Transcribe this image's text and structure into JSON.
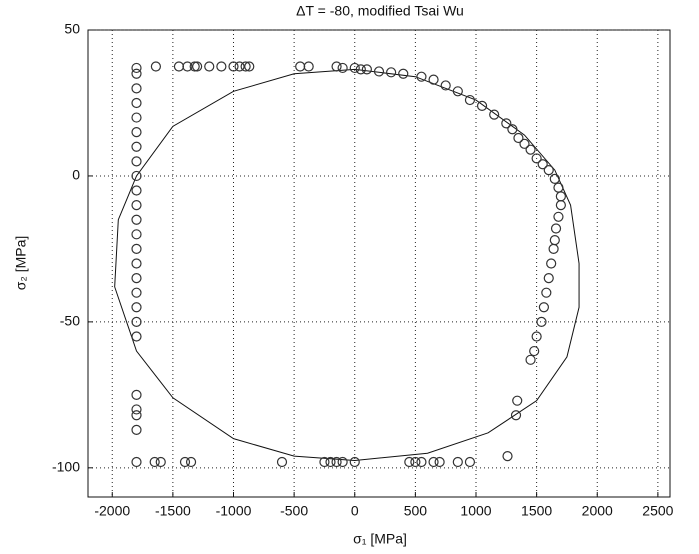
{
  "chart_data": {
    "type": "scatter",
    "title": "ΔT = -80, modified Tsai Wu",
    "x_label": "σ₁ [MPa]",
    "y_label": "σ₂ [MPa]",
    "xlim": [
      -2200,
      2600
    ],
    "ylim": [
      -110,
      50
    ],
    "xticks": [
      -2000,
      -1500,
      -1000,
      -500,
      0,
      500,
      1000,
      1500,
      2000,
      2500
    ],
    "yticks": [
      -100,
      -50,
      0,
      50
    ],
    "grid": true,
    "curve": {
      "color": "#111111",
      "x": [
        0,
        500,
        1000,
        1400,
        1650,
        1780,
        1850,
        1850,
        1750,
        1500,
        1100,
        600,
        0,
        -500,
        -1000,
        -1500,
        -1800,
        -1980,
        -1950,
        -1800,
        -1500,
        -1000,
        -500,
        0
      ],
      "y": [
        36.5,
        34,
        26,
        14,
        2,
        -10,
        -30,
        -45,
        -62,
        -77,
        -88,
        -95,
        -97.5,
        -96,
        -90,
        -76,
        -60,
        -38,
        -15,
        0,
        17,
        29,
        35,
        36.5
      ]
    },
    "points": {
      "color": "#333333",
      "x": [
        -1640,
        -1450,
        -1380,
        -1320,
        -1300,
        -1200,
        -1100,
        -1000,
        -950,
        -900,
        -870,
        -450,
        -380,
        -150,
        -100,
        0,
        50,
        100,
        -1800,
        -1800,
        -1800,
        -1800,
        -1800,
        -1800,
        -1800,
        -1800,
        -1800,
        -1800,
        -1800,
        -1800,
        -1800,
        -1800,
        -1800,
        -1800,
        -1800,
        -1800,
        -1800,
        -1800,
        -1800,
        -1800,
        -1800,
        -1800,
        -1800,
        -1650,
        -1600,
        -1400,
        -1350,
        -600,
        -250,
        -200,
        -150,
        -100,
        0,
        450,
        500,
        550,
        650,
        700,
        850,
        950,
        200,
        300,
        400,
        550,
        650,
        750,
        850,
        950,
        1050,
        1150,
        1250,
        1300,
        1350,
        1400,
        1450,
        1500,
        1550,
        1600,
        1650,
        1680,
        1700,
        1700,
        1680,
        1660,
        1650,
        1640,
        1620,
        1600,
        1580,
        1560,
        1540,
        1500,
        1480,
        1450,
        1340,
        1330,
        1260
      ],
      "y": [
        37.5,
        37.5,
        37.5,
        37.5,
        37.5,
        37.5,
        37.5,
        37.5,
        37.5,
        37.5,
        37.5,
        37.5,
        37.5,
        37.5,
        37,
        37,
        36.5,
        36.5,
        35,
        30,
        25,
        20,
        15,
        10,
        5,
        0,
        -5,
        -10,
        -15,
        -20,
        -25,
        -30,
        -35,
        -40,
        -45,
        -50,
        -55,
        -75,
        -80,
        -82,
        -87,
        37,
        -98,
        -98,
        -98,
        -98,
        -98,
        -98,
        -98,
        -98,
        -98,
        -98,
        -98,
        -98,
        -98,
        -98,
        -98,
        -98,
        -98,
        -98,
        35.8,
        35.5,
        35,
        34,
        33,
        31,
        29,
        26,
        24,
        21,
        18,
        16,
        13,
        11,
        9,
        6,
        4,
        2,
        -1,
        -4,
        -7,
        -10,
        -14,
        -18,
        -22,
        -25,
        -30,
        -35,
        -40,
        -45,
        -50,
        -55,
        -60,
        -63,
        -77,
        -82,
        -96
      ]
    }
  }
}
